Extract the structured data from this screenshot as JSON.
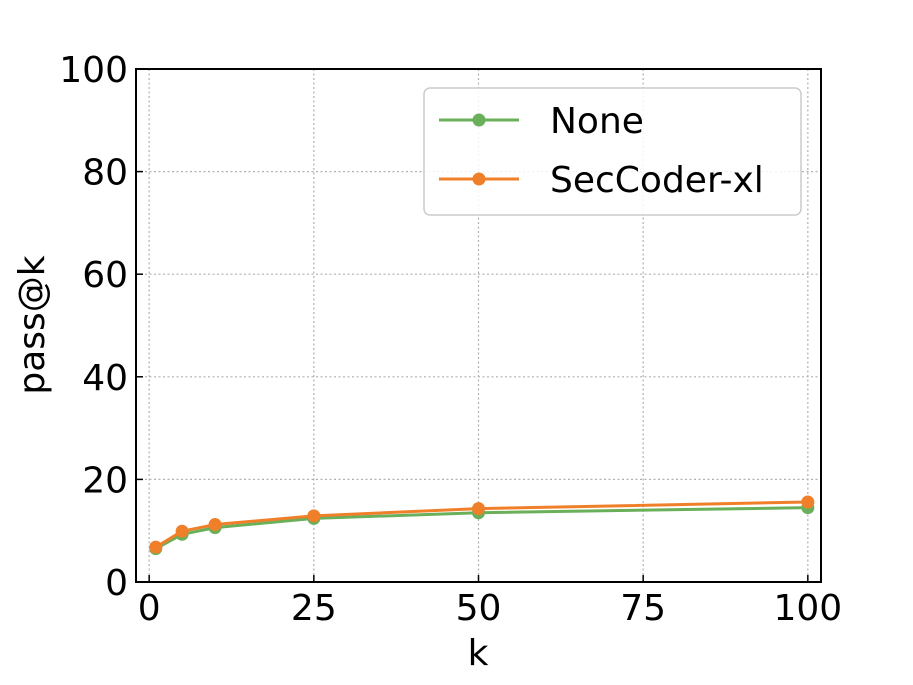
{
  "chart_data": {
    "type": "line",
    "xlabel": "k",
    "ylabel": "pass@k",
    "xlim": [
      -2,
      102
    ],
    "ylim": [
      0,
      100
    ],
    "xticks": [
      0,
      25,
      50,
      75,
      100
    ],
    "yticks": [
      0,
      20,
      40,
      60,
      80,
      100
    ],
    "grid": true,
    "legend_position": "top-right",
    "series": [
      {
        "name": "None",
        "color": "#6aaf5a",
        "x": [
          1,
          5,
          10,
          25,
          50,
          100
        ],
        "y": [
          6.5,
          9.3,
          10.6,
          12.4,
          13.5,
          14.5
        ]
      },
      {
        "name": "SecCoder-xl",
        "color": "#f07f2a",
        "x": [
          1,
          5,
          10,
          25,
          50,
          100
        ],
        "y": [
          6.8,
          9.9,
          11.2,
          12.9,
          14.3,
          15.6
        ]
      }
    ]
  }
}
